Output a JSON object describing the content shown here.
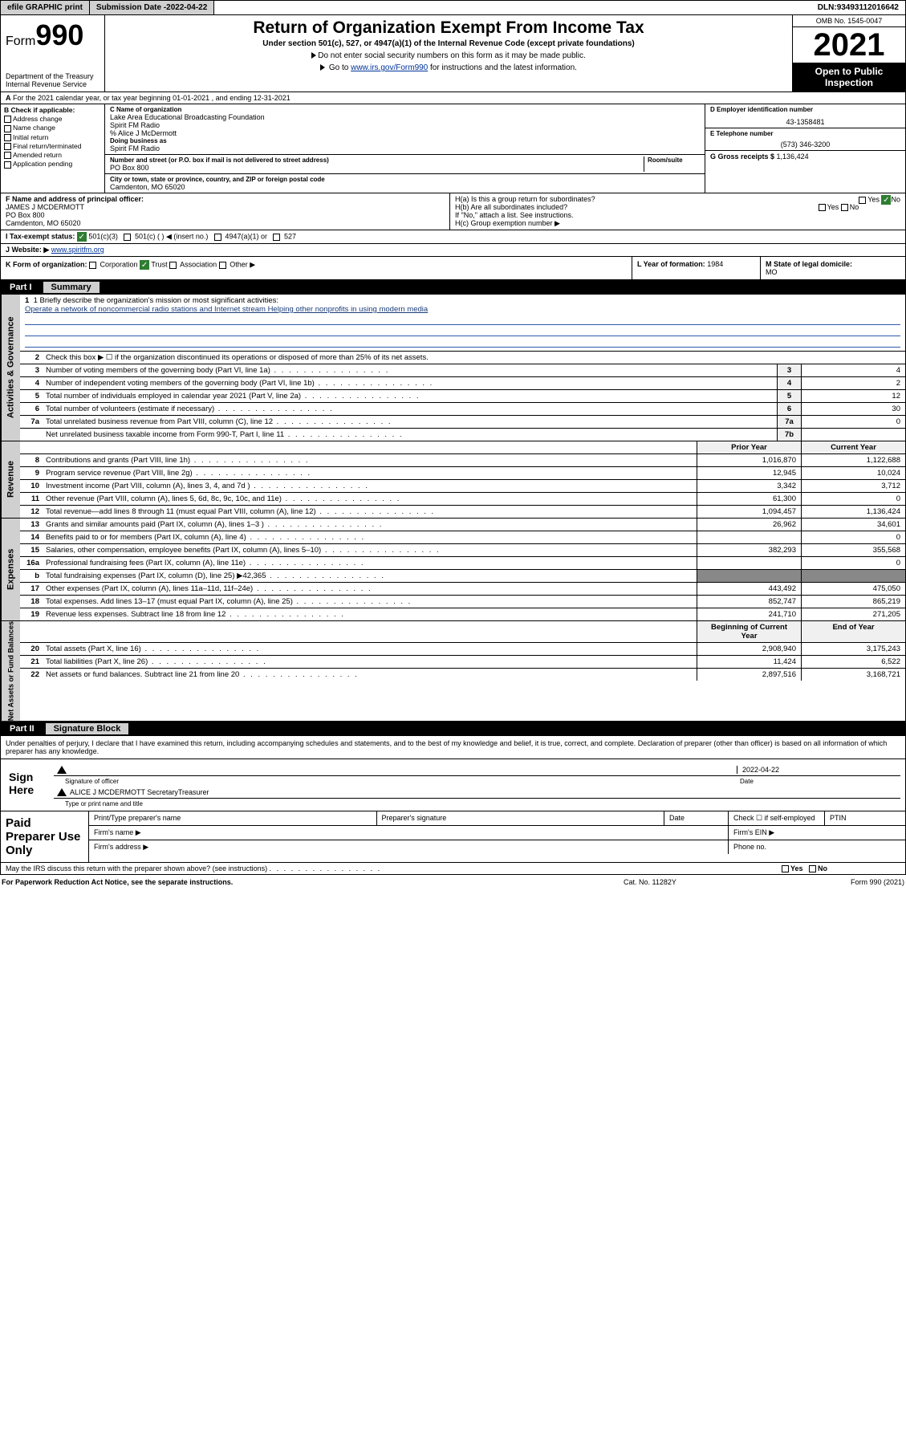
{
  "topbar": {
    "efile": "efile GRAPHIC print",
    "submission_label": "Submission Date - ",
    "submission_date": "2022-04-22",
    "dln_label": "DLN: ",
    "dln": "93493112016642"
  },
  "header": {
    "form_prefix": "Form",
    "form_number": "990",
    "dept": "Department of the Treasury\nInternal Revenue Service",
    "title": "Return of Organization Exempt From Income Tax",
    "subtitle": "Under section 501(c), 527, or 4947(a)(1) of the Internal Revenue Code (except private foundations)",
    "note1": "Do not enter social security numbers on this form as it may be made public.",
    "note2_pre": "Go to ",
    "note2_link": "www.irs.gov/Form990",
    "note2_post": " for instructions and the latest information.",
    "omb": "OMB No. 1545-0047",
    "year": "2021",
    "inspection": "Open to Public Inspection"
  },
  "row_a": "For the 2021 calendar year, or tax year beginning 01-01-2021   , and ending 12-31-2021",
  "col_b": {
    "label": "B Check if applicable:",
    "items": [
      "Address change",
      "Name change",
      "Initial return",
      "Final return/terminated",
      "Amended return",
      "Application pending"
    ]
  },
  "col_c": {
    "name_label": "C Name of organization",
    "name": "Lake Area Educational Broadcasting Foundation\nSpirit FM Radio",
    "care_of": "% Alice J McDermott",
    "dba_label": "Doing business as",
    "dba": "Spirit FM Radio",
    "addr_label": "Number and street (or P.O. box if mail is not delivered to street address)",
    "room_label": "Room/suite",
    "addr": "PO Box 800",
    "city_label": "City or town, state or province, country, and ZIP or foreign postal code",
    "city": "Camdenton, MO  65020"
  },
  "col_d": {
    "ein_label": "D Employer identification number",
    "ein": "43-1358481",
    "phone_label": "E Telephone number",
    "phone": "(573) 346-3200",
    "gross_label": "G Gross receipts $ ",
    "gross": "1,136,424"
  },
  "row_f": {
    "label": "F  Name and address of principal officer:",
    "name": "JAMES J MCDERMOTT",
    "addr": "PO Box 800\nCamdenton, MO  65020"
  },
  "row_h": {
    "a": "H(a)  Is this a group return for subordinates?",
    "b": "H(b)  Are all subordinates included?",
    "b_note": "If \"No,\" attach a list. See instructions.",
    "c": "H(c)  Group exemption number ▶",
    "yes": "Yes",
    "no": "No"
  },
  "row_i": {
    "label": "I  Tax-exempt status:",
    "opts": [
      "501(c)(3)",
      "501(c) (  ) ◀ (insert no.)",
      "4947(a)(1) or",
      "527"
    ]
  },
  "row_j": {
    "label": "J  Website: ▶ ",
    "url": "www.spiritfm.org"
  },
  "row_k": {
    "label": "K Form of organization:",
    "opts": [
      "Corporation",
      "Trust",
      "Association",
      "Other ▶"
    ],
    "l_label": "L Year of formation: ",
    "l_val": "1984",
    "m_label": "M State of legal domicile:",
    "m_val": "MO"
  },
  "part1": {
    "num": "Part I",
    "title": "Summary"
  },
  "mission": {
    "label": "1  Briefly describe the organization's mission or most significant activities:",
    "text": "Operate a network of noncommercial radio stations and Internet stream Helping other nonprofits in using modern media"
  },
  "line2": "Check this box ▶ ☐  if the organization discontinued its operations or disposed of more than 25% of its net assets.",
  "gov_lines": [
    {
      "n": "3",
      "d": "Number of voting members of the governing body (Part VI, line 1a)",
      "box": "3",
      "v": "4"
    },
    {
      "n": "4",
      "d": "Number of independent voting members of the governing body (Part VI, line 1b)",
      "box": "4",
      "v": "2"
    },
    {
      "n": "5",
      "d": "Total number of individuals employed in calendar year 2021 (Part V, line 2a)",
      "box": "5",
      "v": "12"
    },
    {
      "n": "6",
      "d": "Total number of volunteers (estimate if necessary)",
      "box": "6",
      "v": "30"
    },
    {
      "n": "7a",
      "d": "Total unrelated business revenue from Part VIII, column (C), line 12",
      "box": "7a",
      "v": "0"
    },
    {
      "n": "",
      "d": "Net unrelated business taxable income from Form 990-T, Part I, line 11",
      "box": "7b",
      "v": ""
    }
  ],
  "col_hdr": {
    "prior": "Prior Year",
    "current": "Current Year"
  },
  "rev_lines": [
    {
      "n": "8",
      "d": "Contributions and grants (Part VIII, line 1h)",
      "p": "1,016,870",
      "c": "1,122,688"
    },
    {
      "n": "9",
      "d": "Program service revenue (Part VIII, line 2g)",
      "p": "12,945",
      "c": "10,024"
    },
    {
      "n": "10",
      "d": "Investment income (Part VIII, column (A), lines 3, 4, and 7d )",
      "p": "3,342",
      "c": "3,712"
    },
    {
      "n": "11",
      "d": "Other revenue (Part VIII, column (A), lines 5, 6d, 8c, 9c, 10c, and 11e)",
      "p": "61,300",
      "c": "0"
    },
    {
      "n": "12",
      "d": "Total revenue—add lines 8 through 11 (must equal Part VIII, column (A), line 12)",
      "p": "1,094,457",
      "c": "1,136,424"
    }
  ],
  "exp_lines": [
    {
      "n": "13",
      "d": "Grants and similar amounts paid (Part IX, column (A), lines 1–3 )",
      "p": "26,962",
      "c": "34,601"
    },
    {
      "n": "14",
      "d": "Benefits paid to or for members (Part IX, column (A), line 4)",
      "p": "",
      "c": "0"
    },
    {
      "n": "15",
      "d": "Salaries, other compensation, employee benefits (Part IX, column (A), lines 5–10)",
      "p": "382,293",
      "c": "355,568"
    },
    {
      "n": "16a",
      "d": "Professional fundraising fees (Part IX, column (A), line 11e)",
      "p": "",
      "c": "0"
    },
    {
      "n": "b",
      "d": "Total fundraising expenses (Part IX, column (D), line 25) ▶42,365",
      "p": "shade",
      "c": "shade"
    },
    {
      "n": "17",
      "d": "Other expenses (Part IX, column (A), lines 11a–11d, 11f–24e)",
      "p": "443,492",
      "c": "475,050"
    },
    {
      "n": "18",
      "d": "Total expenses. Add lines 13–17 (must equal Part IX, column (A), line 25)",
      "p": "852,747",
      "c": "865,219"
    },
    {
      "n": "19",
      "d": "Revenue less expenses. Subtract line 18 from line 12",
      "p": "241,710",
      "c": "271,205"
    }
  ],
  "na_hdr": {
    "begin": "Beginning of Current Year",
    "end": "End of Year"
  },
  "na_lines": [
    {
      "n": "20",
      "d": "Total assets (Part X, line 16)",
      "p": "2,908,940",
      "c": "3,175,243"
    },
    {
      "n": "21",
      "d": "Total liabilities (Part X, line 26)",
      "p": "11,424",
      "c": "6,522"
    },
    {
      "n": "22",
      "d": "Net assets or fund balances. Subtract line 21 from line 20",
      "p": "2,897,516",
      "c": "3,168,721"
    }
  ],
  "part2": {
    "num": "Part II",
    "title": "Signature Block"
  },
  "penalty": "Under penalties of perjury, I declare that I have examined this return, including accompanying schedules and statements, and to the best of my knowledge and belief, it is true, correct, and complete. Declaration of preparer (other than officer) is based on all information of which preparer has any knowledge.",
  "sign": {
    "here": "Sign Here",
    "sig_label": "Signature of officer",
    "date": "2022-04-22",
    "date_label": "Date",
    "name": "ALICE J MCDERMOTT SecretaryTreasurer",
    "name_label": "Type or print name and title"
  },
  "paid": {
    "title": "Paid Preparer Use Only",
    "h1": "Print/Type preparer's name",
    "h2": "Preparer's signature",
    "h3": "Date",
    "h4": "Check ☐  if self-employed",
    "h5": "PTIN",
    "firm_name": "Firm's name  ▶",
    "firm_ein": "Firm's EIN ▶",
    "firm_addr": "Firm's address ▶",
    "phone": "Phone no."
  },
  "discuss": "May the IRS discuss this return with the preparer shown above? (see instructions)",
  "footer": {
    "l": "For Paperwork Reduction Act Notice, see the separate instructions.",
    "c": "Cat. No. 11282Y",
    "r": "Form 990 (2021)"
  },
  "side_tabs": {
    "gov": "Activities & Governance",
    "rev": "Revenue",
    "exp": "Expenses",
    "na": "Net Assets or Fund Balances"
  }
}
